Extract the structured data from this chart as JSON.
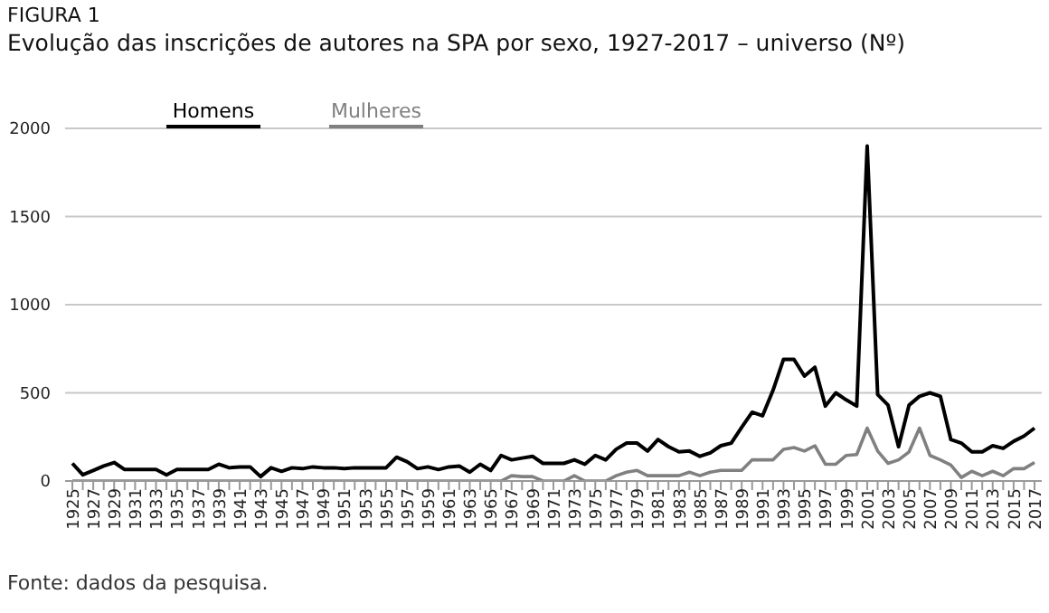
{
  "chart_data": {
    "type": "line",
    "title": "FIGURA 1",
    "subtitle": "Evolução das inscrições de autores na SPA por sexo, 1927-2017 – universo (Nº)",
    "categories": [
      "1925",
      null,
      "1927",
      null,
      "1929",
      null,
      "1931",
      null,
      "1933",
      null,
      "1935",
      null,
      "1937",
      null,
      "1939",
      null,
      "1941",
      null,
      "1943",
      null,
      "1945",
      null,
      "1947",
      null,
      "1949",
      null,
      "1951",
      null,
      "1953",
      null,
      "1955",
      null,
      "1957",
      null,
      "1959",
      null,
      "1961",
      null,
      "1963",
      null,
      "1965",
      null,
      "1967",
      null,
      "1969",
      null,
      "1971",
      null,
      "1973",
      null,
      "1975",
      null,
      "1977",
      null,
      "1979",
      null,
      "1981",
      null,
      "1983",
      null,
      "1985",
      null,
      "1987",
      null,
      "1989",
      null,
      "1991",
      null,
      "1993",
      null,
      "1995",
      null,
      "1997",
      null,
      "1999",
      null,
      "2001",
      null,
      "2003",
      null,
      "2005",
      null,
      "2007",
      null,
      "2009",
      null,
      "2011",
      null,
      "2013",
      null,
      "2015",
      null,
      "2017"
    ],
    "series": [
      {
        "name": "Homens",
        "color": "#000000",
        "values": [
          100,
          35,
          60,
          85,
          105,
          65,
          65,
          65,
          65,
          35,
          65,
          65,
          65,
          65,
          95,
          75,
          80,
          80,
          25,
          75,
          55,
          75,
          70,
          80,
          75,
          75,
          70,
          75,
          75,
          75,
          75,
          135,
          110,
          70,
          80,
          65,
          80,
          85,
          50,
          95,
          60,
          145,
          120,
          130,
          140,
          100,
          100,
          100,
          120,
          95,
          145,
          120,
          180,
          215,
          215,
          170,
          235,
          195,
          165,
          170,
          140,
          160,
          200,
          215,
          305,
          390,
          370,
          515,
          690,
          690,
          595,
          645,
          425,
          500,
          460,
          425,
          1900,
          490,
          430,
          195,
          430,
          480,
          500,
          480,
          235,
          215,
          165,
          165,
          200,
          185,
          225,
          255,
          300
        ]
      },
      {
        "name": "Mulheres",
        "color": "#808080",
        "values": [
          0,
          0,
          0,
          0,
          0,
          0,
          0,
          0,
          0,
          0,
          0,
          0,
          0,
          0,
          0,
          0,
          0,
          0,
          0,
          0,
          0,
          0,
          0,
          0,
          0,
          0,
          0,
          0,
          0,
          0,
          0,
          0,
          0,
          0,
          0,
          0,
          0,
          0,
          0,
          0,
          0,
          0,
          30,
          25,
          25,
          0,
          0,
          0,
          30,
          0,
          0,
          0,
          30,
          50,
          60,
          30,
          30,
          30,
          30,
          50,
          30,
          50,
          60,
          60,
          60,
          120,
          120,
          120,
          180,
          190,
          170,
          200,
          95,
          95,
          145,
          150,
          300,
          170,
          100,
          120,
          165,
          300,
          145,
          120,
          90,
          20,
          55,
          30,
          55,
          30,
          70,
          70,
          105
        ]
      }
    ],
    "ylim": [
      0,
      2000
    ],
    "yticks": [
      0,
      500,
      1000,
      1500,
      2000
    ],
    "grid": "y",
    "legend": "top",
    "marker": "none",
    "line_style": "solid",
    "annotations": [
      "Fonte: dados da pesquisa."
    ]
  }
}
